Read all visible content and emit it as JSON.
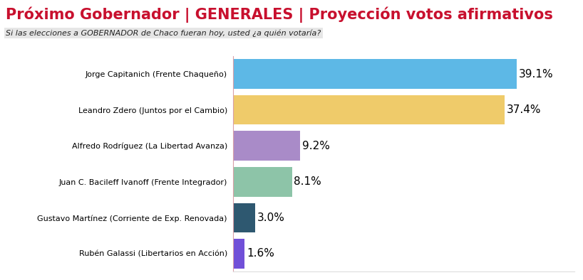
{
  "chart_data": {
    "type": "bar",
    "orientation": "horizontal",
    "title": "Próximo Gobernador | GENERALES | Proyección votos afirmativos",
    "subtitle": "Si las elecciones a GOBERNADOR de Chaco fueran hoy, usted ¿a quién votaría?",
    "categories": [
      "Jorge Capitanich (Frente Chaqueño)",
      "Leandro Zdero (Juntos por el Cambio)",
      "Alfredo Rodríguez (La Libertad Avanza)",
      "Juan C. Bacileff Ivanoff (Frente Integrador)",
      "Gustavo Martínez (Corriente de Exp. Renovada)",
      "Rubén Galassi (Libertarios en Acción)"
    ],
    "values": [
      39.1,
      37.4,
      9.2,
      8.1,
      3.0,
      1.6
    ],
    "value_labels": [
      "39.1%",
      "37.4%",
      "9.2%",
      "8.1%",
      "3.0%",
      "1.6%"
    ],
    "colors": [
      "#5db8e6",
      "#efcb6a",
      "#a98bc8",
      "#8dc4a8",
      "#2e5870",
      "#7150d8"
    ],
    "xlim": [
      0,
      47
    ],
    "data_labels": true,
    "tick_labels": "y",
    "grid": false
  }
}
